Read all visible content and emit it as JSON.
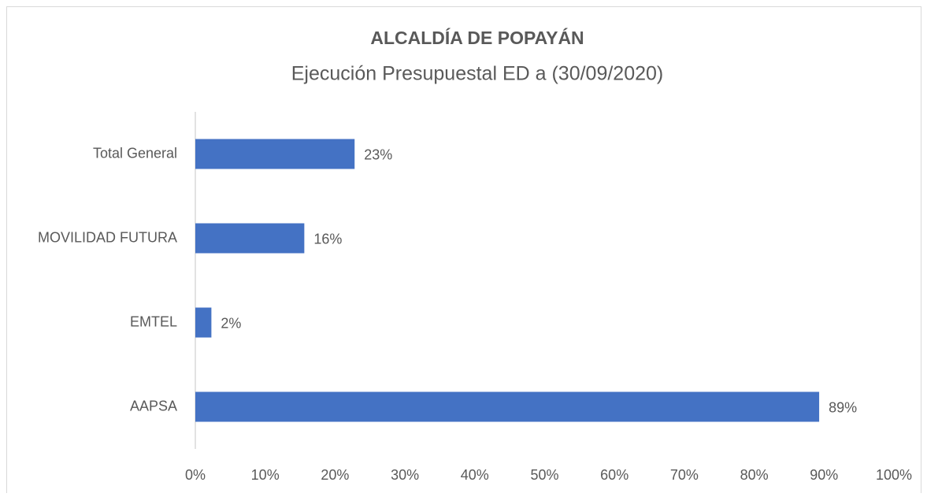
{
  "chart_data": {
    "type": "hbar",
    "title": "ALCALDÍA DE POPAYÁN",
    "subtitle": "Ejecución Presupuestal ED a (30/09/2020)",
    "categories": [
      "Total General",
      "MOVILIDAD FUTURA",
      "EMTEL",
      "AAPSA"
    ],
    "values": [
      22.8,
      15.6,
      2.3,
      89.3
    ],
    "value_labels": [
      "23%",
      "16%",
      "2%",
      "89%"
    ],
    "color": "#4472c4",
    "xlim": [
      0,
      100
    ],
    "xticks": [
      {
        "value": 0,
        "label": "0%"
      },
      {
        "value": 10,
        "label": "10%"
      },
      {
        "value": 20,
        "label": "20%"
      },
      {
        "value": 30,
        "label": "30%"
      },
      {
        "value": 40,
        "label": "40%"
      },
      {
        "value": 50,
        "label": "50%"
      },
      {
        "value": 60,
        "label": "60%"
      },
      {
        "value": 70,
        "label": "70%"
      },
      {
        "value": 80,
        "label": "80%"
      },
      {
        "value": 90,
        "label": "90%"
      },
      {
        "value": 100,
        "label": "100%"
      }
    ]
  }
}
